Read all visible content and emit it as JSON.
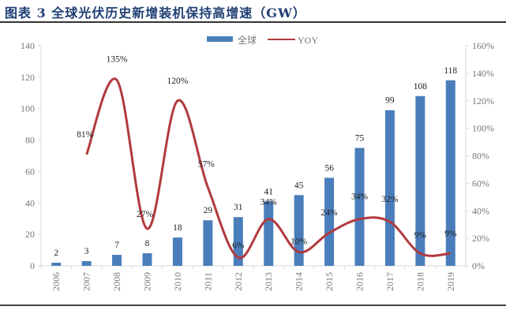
{
  "title": "图表 3 全球光伏历史新增装机保持高增速（GW）",
  "colors": {
    "bar": "#4a7ebb",
    "line": "#b03a3e",
    "axis": "#d9d9d9",
    "title": "#1f3f73"
  },
  "chart_data": {
    "type": "bar+line",
    "title": "图表 3 全球光伏历史新增装机保持高增速（GW）",
    "categories": [
      "2006",
      "2007",
      "2008",
      "2009",
      "2010",
      "2011",
      "2012",
      "2013",
      "2014",
      "2015",
      "2016",
      "2017",
      "2018",
      "2019"
    ],
    "series": [
      {
        "name": "全球",
        "type": "bar",
        "axis": "left",
        "values": [
          2,
          3,
          7,
          8,
          18,
          29,
          31,
          41,
          45,
          56,
          75,
          99,
          108,
          118
        ],
        "labels": [
          "2",
          "3",
          "7",
          "8",
          "18",
          "29",
          "31",
          "41",
          "45",
          "56",
          "75",
          "99",
          "108",
          "118"
        ]
      },
      {
        "name": "YOY",
        "type": "line",
        "axis": "right",
        "values": [
          null,
          81,
          135,
          27,
          120,
          57,
          6,
          34,
          10,
          24,
          34,
          32,
          9,
          9
        ],
        "labels": [
          "",
          "81%",
          "135%",
          "27%",
          "120%",
          "57%",
          "6%",
          "34%",
          "10%",
          "24%",
          "34%",
          "32%",
          "9%",
          "9%"
        ]
      }
    ],
    "left_axis": {
      "ylim": [
        0,
        140
      ],
      "ticks": [
        "0",
        "20",
        "40",
        "60",
        "80",
        "100",
        "120",
        "140"
      ]
    },
    "right_axis": {
      "ylim": [
        0,
        160
      ],
      "ticks": [
        "0%",
        "20%",
        "40%",
        "60%",
        "80%",
        "100%",
        "120%",
        "140%",
        "160%"
      ]
    },
    "legend": {
      "position": "top-center",
      "entries": [
        "全球",
        "YOY"
      ]
    },
    "grid": false
  }
}
